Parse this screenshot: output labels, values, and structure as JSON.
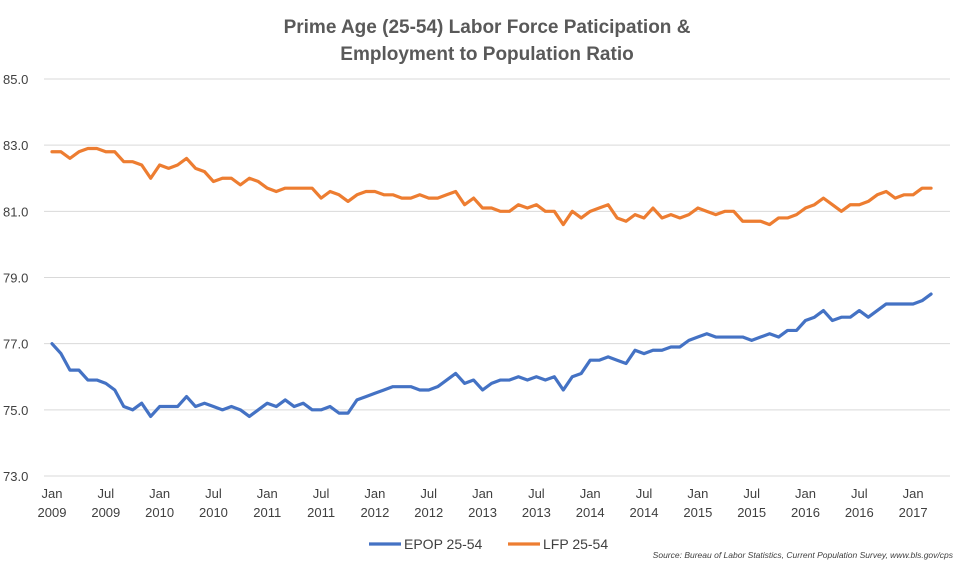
{
  "chart_data": {
    "type": "line",
    "title_lines": [
      "Prime Age (25-54) Labor Force Paticipation &",
      "Employment to Population Ratio"
    ],
    "xlabel": "",
    "ylabel": "",
    "ylim": [
      73.0,
      85.0
    ],
    "yticks": [
      "73.0",
      "75.0",
      "77.0",
      "79.0",
      "81.0",
      "83.0",
      "85.0"
    ],
    "x_range_months": [
      "2009-01",
      "2017-04"
    ],
    "xticks": [
      {
        "month": "Jan",
        "year": "2009"
      },
      {
        "month": "Jul",
        "year": "2009"
      },
      {
        "month": "Jan",
        "year": "2010"
      },
      {
        "month": "Jul",
        "year": "2010"
      },
      {
        "month": "Jan",
        "year": "2011"
      },
      {
        "month": "Jul",
        "year": "2011"
      },
      {
        "month": "Jan",
        "year": "2012"
      },
      {
        "month": "Jul",
        "year": "2012"
      },
      {
        "month": "Jan",
        "year": "2013"
      },
      {
        "month": "Jul",
        "year": "2013"
      },
      {
        "month": "Jan",
        "year": "2014"
      },
      {
        "month": "Jul",
        "year": "2014"
      },
      {
        "month": "Jan",
        "year": "2015"
      },
      {
        "month": "Jul",
        "year": "2015"
      },
      {
        "month": "Jan",
        "year": "2016"
      },
      {
        "month": "Jul",
        "year": "2016"
      },
      {
        "month": "Jan",
        "year": "2017"
      }
    ],
    "grid": "horizontal",
    "legend_position": "bottom",
    "source_note": "Source: Bureau of Labor Statistics, Current Population Survey, www.bls.gov/cps",
    "series": [
      {
        "name": "EPOP 25-54",
        "color": "#4472C4",
        "values": [
          77.0,
          76.7,
          76.2,
          76.2,
          75.9,
          75.9,
          75.8,
          75.6,
          75.1,
          75.0,
          75.2,
          74.8,
          75.1,
          75.1,
          75.1,
          75.4,
          75.1,
          75.2,
          75.1,
          75.0,
          75.1,
          75.0,
          74.8,
          75.0,
          75.2,
          75.1,
          75.3,
          75.1,
          75.2,
          75.0,
          75.0,
          75.1,
          74.9,
          74.9,
          75.3,
          75.4,
          75.5,
          75.6,
          75.7,
          75.7,
          75.7,
          75.6,
          75.6,
          75.7,
          75.9,
          76.1,
          75.8,
          75.9,
          75.6,
          75.8,
          75.9,
          75.9,
          76.0,
          75.9,
          76.0,
          75.9,
          76.0,
          75.6,
          76.0,
          76.1,
          76.5,
          76.5,
          76.6,
          76.5,
          76.4,
          76.8,
          76.7,
          76.8,
          76.8,
          76.9,
          76.9,
          77.1,
          77.2,
          77.3,
          77.2,
          77.2,
          77.2,
          77.2,
          77.1,
          77.2,
          77.3,
          77.2,
          77.4,
          77.4,
          77.7,
          77.8,
          78.0,
          77.7,
          77.8,
          77.8,
          78.0,
          77.8,
          78.0,
          78.2,
          78.2,
          78.2,
          78.2,
          78.3,
          78.5
        ]
      },
      {
        "name": "LFP 25-54",
        "color": "#ED7D31",
        "values": [
          82.8,
          82.8,
          82.6,
          82.8,
          82.9,
          82.9,
          82.8,
          82.8,
          82.5,
          82.5,
          82.4,
          82.0,
          82.4,
          82.3,
          82.4,
          82.6,
          82.3,
          82.2,
          81.9,
          82.0,
          82.0,
          81.8,
          82.0,
          81.9,
          81.7,
          81.6,
          81.7,
          81.7,
          81.7,
          81.7,
          81.4,
          81.6,
          81.5,
          81.3,
          81.5,
          81.6,
          81.6,
          81.5,
          81.5,
          81.4,
          81.4,
          81.5,
          81.4,
          81.4,
          81.5,
          81.6,
          81.2,
          81.4,
          81.1,
          81.1,
          81.0,
          81.0,
          81.2,
          81.1,
          81.2,
          81.0,
          81.0,
          80.6,
          81.0,
          80.8,
          81.0,
          81.1,
          81.2,
          80.8,
          80.7,
          80.9,
          80.8,
          81.1,
          80.8,
          80.9,
          80.8,
          80.9,
          81.1,
          81.0,
          80.9,
          81.0,
          81.0,
          80.7,
          80.7,
          80.7,
          80.6,
          80.8,
          80.8,
          80.9,
          81.1,
          81.2,
          81.4,
          81.2,
          81.0,
          81.2,
          81.2,
          81.3,
          81.5,
          81.6,
          81.4,
          81.5,
          81.5,
          81.7,
          81.7
        ]
      }
    ]
  }
}
